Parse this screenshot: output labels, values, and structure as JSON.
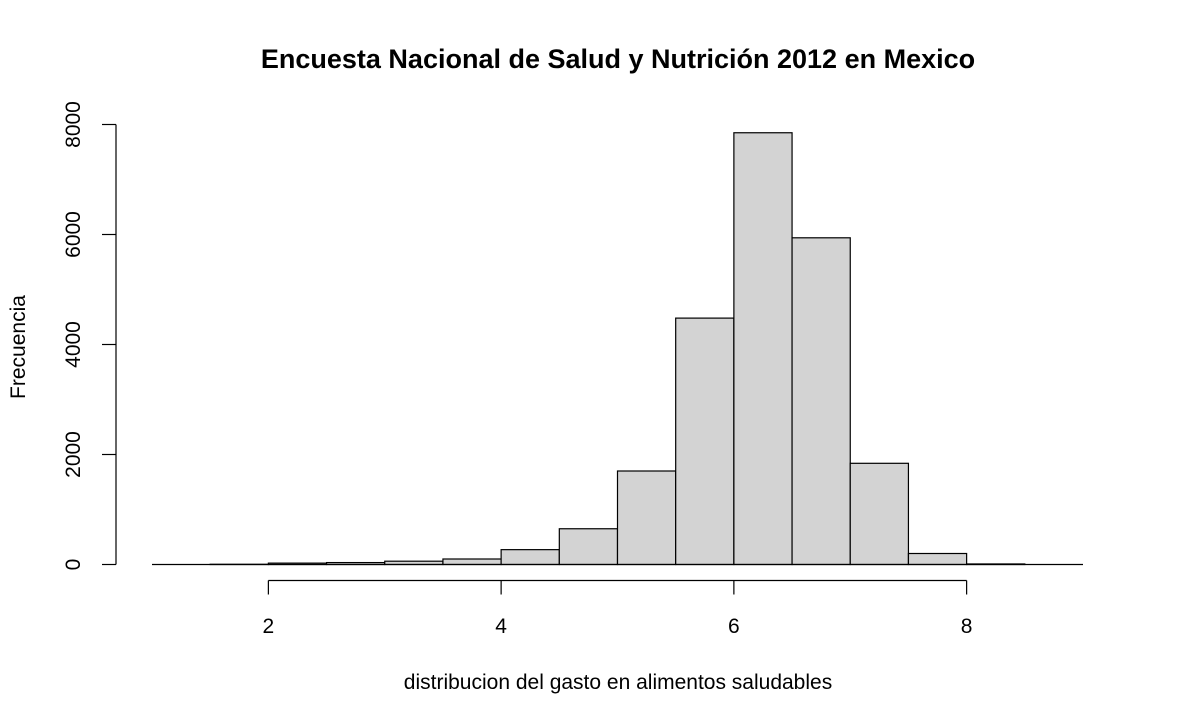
{
  "chart_data": {
    "type": "bar",
    "title": "Encuesta Nacional de Salud y Nutrición 2012 en Mexico",
    "xlabel": "distribucion del gasto en alimentos saludables",
    "ylabel": "Frecuencia",
    "bin_edges": [
      1.5,
      2.0,
      2.5,
      3.0,
      3.5,
      4.0,
      4.5,
      5.0,
      5.5,
      6.0,
      6.5,
      7.0,
      7.5,
      8.0,
      8.5
    ],
    "values": [
      4,
      25,
      35,
      60,
      100,
      270,
      650,
      1700,
      4480,
      7850,
      5940,
      1840,
      200,
      10
    ],
    "xlim": [
      1.0,
      9.0
    ],
    "ylim": [
      0,
      8000
    ],
    "x_ticks": [
      2,
      4,
      6,
      8
    ],
    "y_ticks": [
      0,
      2000,
      4000,
      6000,
      8000
    ],
    "x_tick_labels": [
      "2",
      "4",
      "6",
      "8"
    ],
    "y_tick_labels": [
      "0",
      "2000",
      "4000",
      "6000",
      "8000"
    ],
    "bar_color": "#d3d3d3",
    "edge_color": "#000000",
    "grid": false,
    "legend": "none"
  }
}
